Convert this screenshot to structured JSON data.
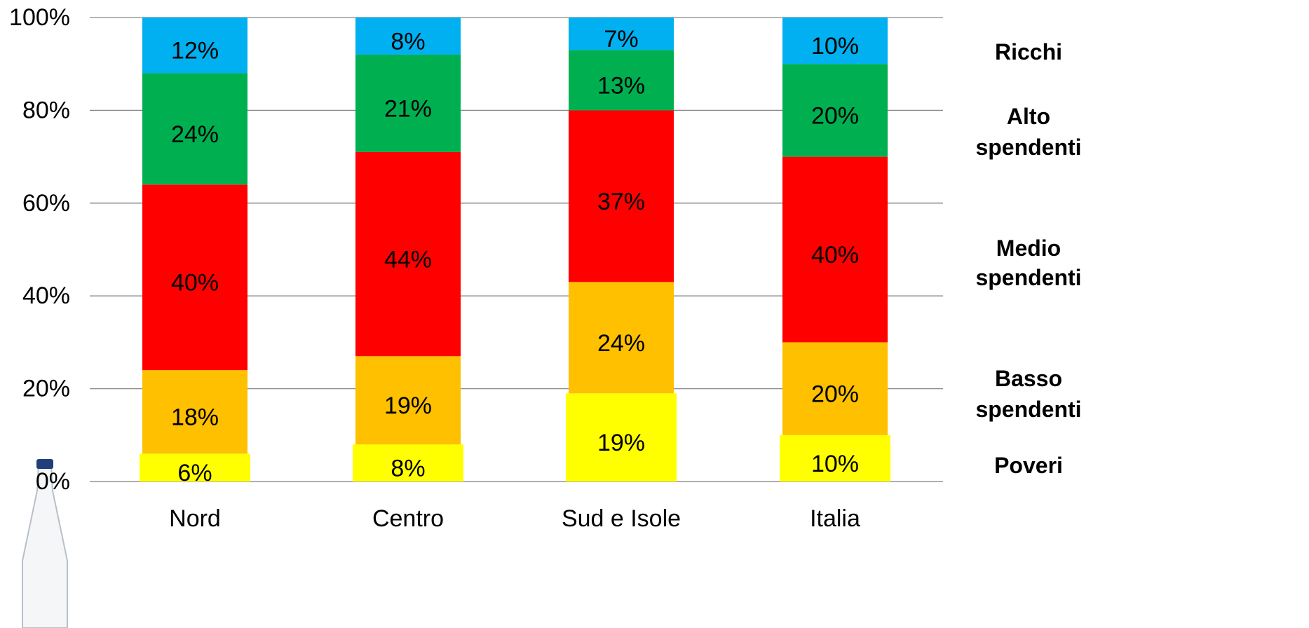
{
  "chart_data": {
    "type": "bar",
    "stacked": true,
    "categories": [
      "Nord",
      "Centro",
      "Sud e Isole",
      "Italia"
    ],
    "series": [
      {
        "name": "Poveri",
        "color": "#FFFF00",
        "values": [
          6,
          8,
          19,
          10
        ],
        "labels": [
          "6%",
          "8%",
          "19%",
          "10%"
        ]
      },
      {
        "name": "Basso spendenti",
        "color": "#FFC000",
        "values": [
          18,
          19,
          24,
          20
        ],
        "labels": [
          "18%",
          "19%",
          "24%",
          "20%"
        ]
      },
      {
        "name": "Medio spendenti",
        "color": "#FF0000",
        "values": [
          40,
          44,
          37,
          40
        ],
        "labels": [
          "40%",
          "44%",
          "37%",
          "40%"
        ]
      },
      {
        "name": "Alto spendenti",
        "color": "#00B050",
        "values": [
          24,
          21,
          13,
          20
        ],
        "labels": [
          "24%",
          "21%",
          "13%",
          "20%"
        ]
      },
      {
        "name": "Ricchi",
        "color": "#00B0F0",
        "values": [
          12,
          8,
          7,
          10
        ],
        "labels": [
          "12%",
          "8%",
          "7%",
          "10%"
        ]
      }
    ],
    "legend": [
      {
        "lines": [
          "Ricchi"
        ]
      },
      {
        "lines": [
          "Alto",
          "spendenti"
        ]
      },
      {
        "lines": [
          "Medio",
          "spendenti"
        ]
      },
      {
        "lines": [
          "Basso",
          "spendenti"
        ]
      },
      {
        "lines": [
          "Poveri"
        ]
      }
    ],
    "legend_position": "right",
    "yticks": [
      "0%",
      "20%",
      "40%",
      "60%",
      "80%",
      "100%"
    ],
    "ylim": [
      0,
      100
    ],
    "grid": true,
    "title": "",
    "xlabel": "",
    "ylabel": ""
  }
}
